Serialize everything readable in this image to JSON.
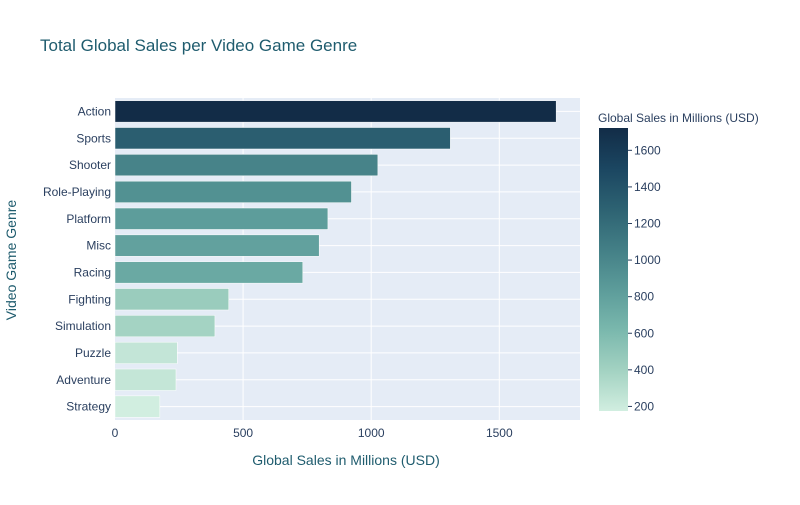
{
  "chart_data": {
    "type": "bar",
    "orientation": "horizontal",
    "title": "Total Global Sales per Video Game Genre",
    "xlabel": "Global Sales in Millions (USD)",
    "ylabel": "Video Game Genre",
    "categories": [
      "Action",
      "Sports",
      "Shooter",
      "Role-Playing",
      "Platform",
      "Misc",
      "Racing",
      "Fighting",
      "Simulation",
      "Puzzle",
      "Adventure",
      "Strategy"
    ],
    "values": [
      1722,
      1309,
      1026,
      923,
      831,
      797,
      733,
      444,
      390,
      243,
      238,
      175
    ],
    "xlim": [
      0,
      1815
    ],
    "xticks": [
      0,
      500,
      1000,
      1500
    ],
    "xtick_labels": [
      "0",
      "500",
      "1000",
      "1500"
    ],
    "grid": true,
    "colorbar": {
      "title": "Global Sales in Millions (USD)",
      "range": [
        175,
        1722
      ],
      "ticks": [
        200,
        400,
        600,
        800,
        1000,
        1200,
        1400,
        1600
      ],
      "tick_labels": [
        "200",
        "400",
        "600",
        "800",
        "1000",
        "1200",
        "1400",
        "1600"
      ],
      "colors": [
        "#d1eee0",
        "#a3d2c2",
        "#7ab8ad",
        "#5c9c9a",
        "#437f86",
        "#2d6272",
        "#1b4661",
        "#122c47"
      ]
    },
    "colors": {
      "plot_bg": "#e5ecf6",
      "grid": "#ffffff",
      "text": "#2a3f5f",
      "title": "#1f5c6e"
    }
  }
}
